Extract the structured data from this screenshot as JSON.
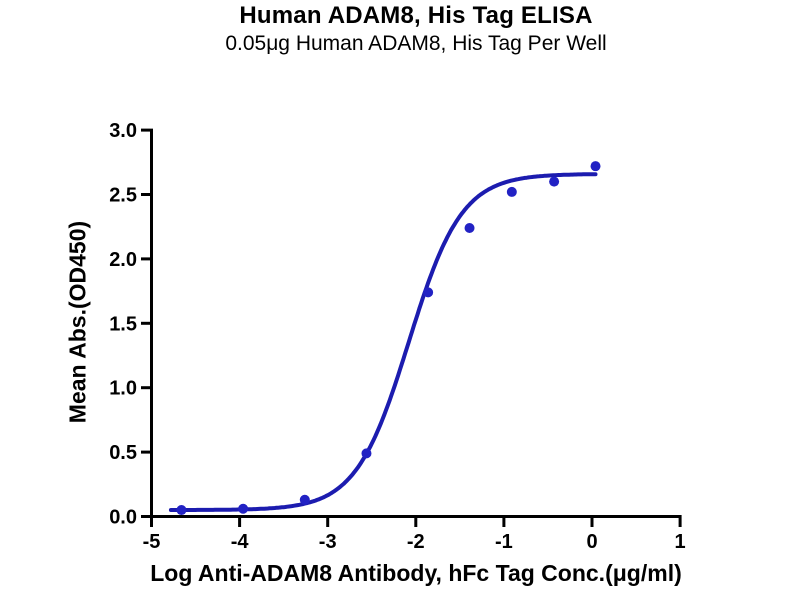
{
  "page": {
    "title": "Human ADAM8, His Tag ELISA",
    "subtitle": "0.05μg Human ADAM8, His Tag Per Well"
  },
  "chart_data": {
    "type": "scatter",
    "title": "Human ADAM8, His Tag ELISA",
    "subtitle": "0.05μg Human ADAM8, His Tag Per Well",
    "xlabel": "Log Anti-ADAM8 Antibody, hFc Tag Conc.(μg/ml)",
    "ylabel": "Mean Abs.(OD450)",
    "xlim": [
      -5,
      1
    ],
    "ylim": [
      0,
      3.0
    ],
    "grid": false,
    "legend": "none",
    "axis_color": "#000000",
    "x_ticks": [
      {
        "v": -5,
        "label": "-5"
      },
      {
        "v": -4,
        "label": "-4"
      },
      {
        "v": -3,
        "label": "-3"
      },
      {
        "v": -2,
        "label": "-2"
      },
      {
        "v": -1,
        "label": "-1"
      },
      {
        "v": 0,
        "label": "0"
      },
      {
        "v": 1,
        "label": "1"
      }
    ],
    "y_ticks": [
      {
        "v": 0.0,
        "label": "0.0"
      },
      {
        "v": 0.5,
        "label": "0.5"
      },
      {
        "v": 1.0,
        "label": "1.0"
      },
      {
        "v": 1.5,
        "label": "1.5"
      },
      {
        "v": 2.0,
        "label": "2.0"
      },
      {
        "v": 2.5,
        "label": "2.5"
      },
      {
        "v": 3.0,
        "label": "3.0"
      }
    ],
    "series": [
      {
        "name": "Anti-ADAM8 Antibody, hFc Tag",
        "marker": "circle",
        "marker_color": "#2222c4",
        "line_color": "#1c1caf",
        "x": [
          -4.66,
          -3.96,
          -3.26,
          -2.56,
          -1.86,
          -1.39,
          -0.91,
          -0.43,
          0.04
        ],
        "y": [
          0.05,
          0.06,
          0.13,
          0.49,
          1.74,
          2.24,
          2.52,
          2.6,
          2.72
        ],
        "fit": {
          "model": "4PL",
          "bottom": 0.05,
          "top": 2.66,
          "logEC50": -2.08,
          "hillslope": 1.45,
          "x_start": -4.78,
          "x_end": 0.05
        }
      }
    ]
  }
}
